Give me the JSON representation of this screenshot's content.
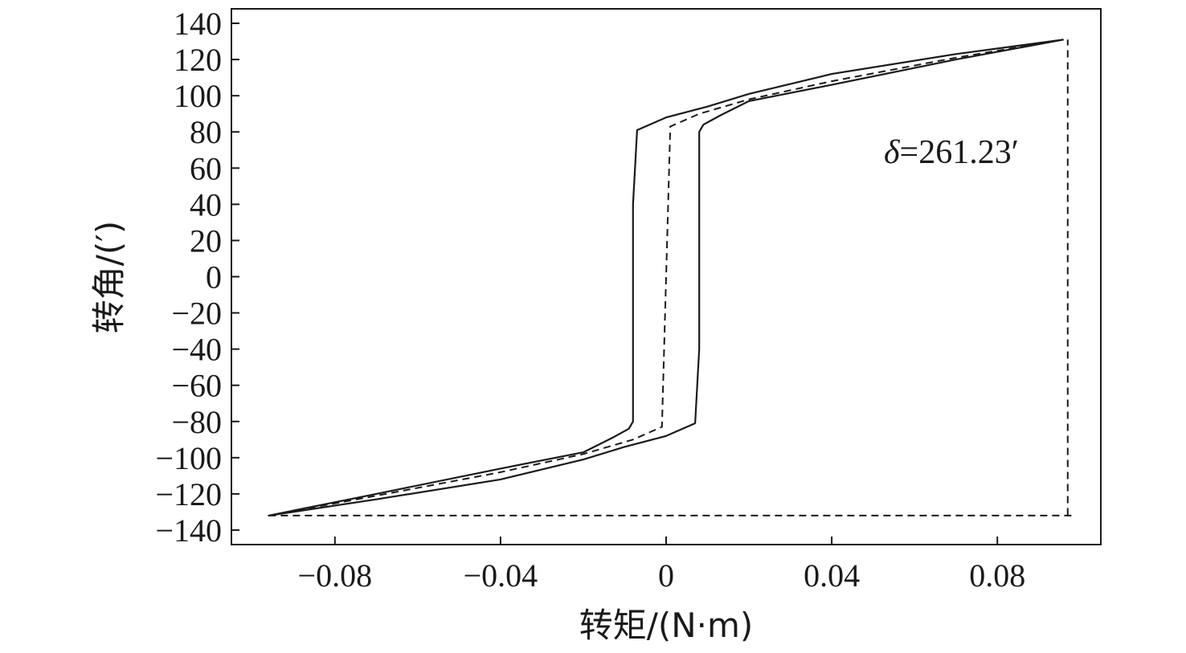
{
  "chart_data": {
    "type": "line",
    "xlabel": "转矩/(N·m)",
    "ylabel": "转角/(′)",
    "xlim": [
      -0.105,
      0.105
    ],
    "ylim": [
      -148,
      148
    ],
    "x_ticks": [
      -0.08,
      -0.04,
      0,
      0.04,
      0.08
    ],
    "x_tick_labels": [
      "−0.08",
      "−0.04",
      "0",
      "0.04",
      "0.08"
    ],
    "y_ticks": [
      -140,
      -120,
      -100,
      -80,
      -60,
      -40,
      -20,
      0,
      20,
      40,
      60,
      80,
      100,
      120,
      140
    ],
    "y_tick_labels": [
      "−140",
      "−120",
      "−100",
      "−80",
      "−60",
      "−40",
      "−20",
      "0",
      "20",
      "40",
      "60",
      "80",
      "100",
      "120",
      "140"
    ],
    "grid": false,
    "legend": "none",
    "annotation": {
      "symbol": "δ",
      "text": "=261.23′",
      "x": 0.073,
      "y": 68
    },
    "series": [
      {
        "style": "solid",
        "x": [
          0.096,
          0.07,
          0.04,
          0.02,
          0.013,
          0.009,
          0.008,
          0.008,
          0.008,
          0.008,
          0.007,
          0.0,
          -0.01,
          -0.02,
          -0.04,
          -0.07,
          -0.096,
          -0.07,
          -0.04,
          -0.02,
          -0.013,
          -0.009,
          -0.008,
          -0.008,
          -0.008,
          -0.008,
          -0.007,
          0.0,
          0.01,
          0.02,
          0.04,
          0.07,
          0.096
        ],
        "y": [
          131,
          120,
          106,
          97,
          89,
          84,
          80,
          40,
          0,
          -40,
          -81,
          -88,
          -94,
          -101,
          -112,
          -123,
          -132,
          -120,
          -106,
          -97,
          -89,
          -84,
          -80,
          -40,
          0,
          40,
          81,
          88,
          94,
          101,
          112,
          123,
          131
        ]
      },
      {
        "style": "dashed",
        "x": [
          0.096,
          0.07,
          0.04,
          0.02,
          0.008,
          0.003,
          0.001,
          0.0,
          -0.001,
          -0.003,
          -0.008,
          -0.02,
          -0.04,
          -0.07,
          -0.096
        ],
        "y": [
          131,
          121,
          108,
          98,
          90,
          85,
          83,
          0,
          -83,
          -85,
          -90,
          -98,
          -108,
          -121,
          -132
        ]
      },
      {
        "style": "dashed",
        "x": [
          -0.096,
          0.098,
          0.097,
          0.097
        ],
        "y": [
          -132,
          -132,
          -132,
          131
        ]
      }
    ]
  }
}
